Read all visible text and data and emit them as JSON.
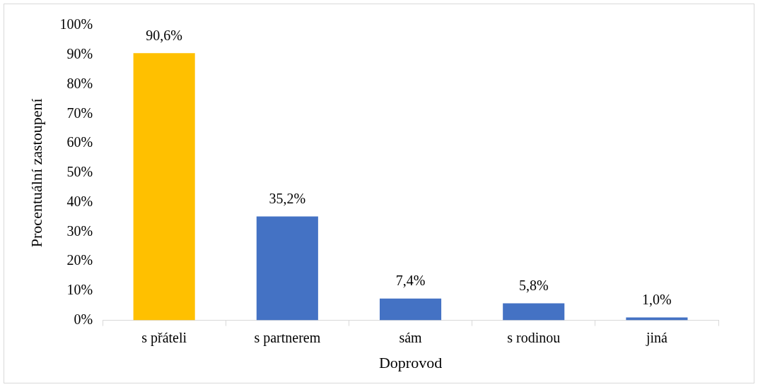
{
  "chart_data": {
    "type": "bar",
    "xlabel": "Doprovod",
    "ylabel": "Procentuální zastoupení",
    "categories": [
      "s přáteli",
      "s partnerem",
      "sám",
      "s rodinou",
      "jiná"
    ],
    "values": [
      90.6,
      35.2,
      7.4,
      5.8,
      1.0
    ],
    "colors": [
      "#ffc000",
      "#4472c4",
      "#4472c4",
      "#4472c4",
      "#4472c4"
    ],
    "value_labels": [
      "90,6%",
      "35,2%",
      "7,4%",
      "5,8%",
      "1,0%"
    ],
    "ylim": [
      0,
      100
    ],
    "yticks": [
      {
        "value": 0,
        "label": "0%"
      },
      {
        "value": 10,
        "label": "10%"
      },
      {
        "value": 20,
        "label": "20%"
      },
      {
        "value": 30,
        "label": "30%"
      },
      {
        "value": 40,
        "label": "40%"
      },
      {
        "value": 50,
        "label": "50%"
      },
      {
        "value": 60,
        "label": "60%"
      },
      {
        "value": 70,
        "label": "70%"
      },
      {
        "value": 80,
        "label": "80%"
      },
      {
        "value": 90,
        "label": "90%"
      },
      {
        "value": 100,
        "label": "100%"
      }
    ],
    "grid": false,
    "legend": false
  }
}
